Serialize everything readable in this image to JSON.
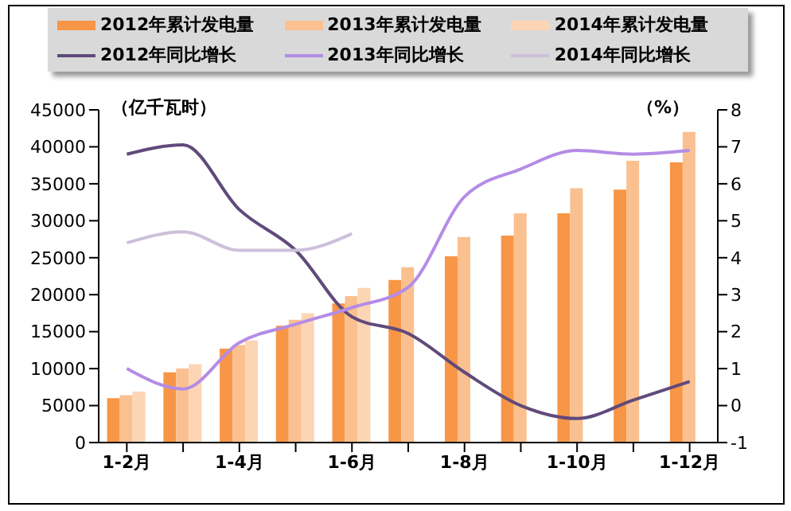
{
  "chart_data": {
    "type": "bar",
    "ylabel": "（亿千瓦时）",
    "y2label": "（%）",
    "categories": [
      "1-2月",
      null,
      "1-4月",
      null,
      "1-6月",
      null,
      "1-8月",
      null,
      "1-10月",
      null,
      "1-12月"
    ],
    "series": [
      {
        "name": "2012年累计发电量",
        "color": "#f79646",
        "values": [
          6000,
          9500,
          12700,
          15800,
          18800,
          22000,
          25200,
          28000,
          31000,
          34200,
          37900
        ]
      },
      {
        "name": "2013年累计发电量",
        "color": "#fac090",
        "values": [
          6400,
          10000,
          13200,
          16600,
          19800,
          23700,
          27800,
          31000,
          34400,
          38100,
          42000
        ]
      },
      {
        "name": "2014年累计发电量",
        "color": "#fcd5b5",
        "values": [
          6900,
          10600,
          13800,
          17500,
          20900,
          null,
          null,
          null,
          null,
          null,
          null
        ]
      },
      {
        "name": "2012年同比增长",
        "type": "line",
        "axis": "y2",
        "color": "#604a7b",
        "values": [
          6.8,
          7.05,
          5.3,
          4.2,
          2.4,
          1.95,
          0.9,
          0.0,
          -0.35,
          0.15,
          0.65
        ]
      },
      {
        "name": "2013年同比增长",
        "type": "line",
        "axis": "y2",
        "color": "#b48ce6",
        "values": [
          1.0,
          0.45,
          1.7,
          2.2,
          2.65,
          3.2,
          5.65,
          6.4,
          6.9,
          6.8,
          6.9
        ]
      },
      {
        "name": "2014年同比增长",
        "type": "line",
        "axis": "y2",
        "color": "#ccc0da",
        "values": [
          4.4,
          4.7,
          4.2,
          4.2,
          4.65,
          null,
          null,
          null,
          null,
          null,
          null
        ]
      }
    ],
    "ylim": [
      0,
      45000
    ],
    "yticks": [
      0,
      5000,
      10000,
      15000,
      20000,
      25000,
      30000,
      35000,
      40000,
      45000
    ],
    "y2lim": [
      -1,
      8
    ],
    "y2ticks": [
      -1,
      0,
      1,
      2,
      3,
      4,
      5,
      6,
      7,
      8
    ],
    "grid": false,
    "legend": "top",
    "marker": "none",
    "line_style": "solid"
  }
}
